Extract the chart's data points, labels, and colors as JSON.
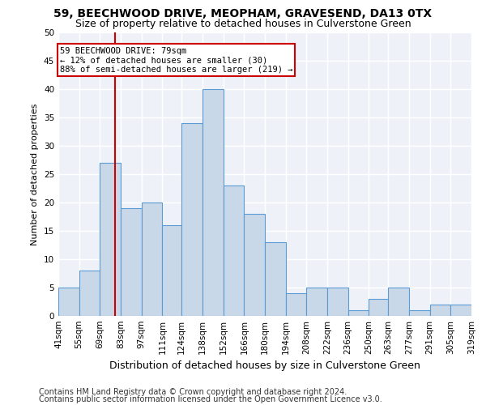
{
  "title1": "59, BEECHWOOD DRIVE, MEOPHAM, GRAVESEND, DA13 0TX",
  "title2": "Size of property relative to detached houses in Culverstone Green",
  "xlabel": "Distribution of detached houses by size in Culverstone Green",
  "ylabel": "Number of detached properties",
  "footer1": "Contains HM Land Registry data © Crown copyright and database right 2024.",
  "footer2": "Contains public sector information licensed under the Open Government Licence v3.0.",
  "bins": [
    41,
    55,
    69,
    83,
    97,
    111,
    124,
    138,
    152,
    166,
    180,
    194,
    208,
    222,
    236,
    250,
    263,
    277,
    291,
    305,
    319
  ],
  "bin_labels": [
    "41sqm",
    "55sqm",
    "69sqm",
    "83sqm",
    "97sqm",
    "111sqm",
    "124sqm",
    "138sqm",
    "152sqm",
    "166sqm",
    "180sqm",
    "194sqm",
    "208sqm",
    "222sqm",
    "236sqm",
    "250sqm",
    "263sqm",
    "277sqm",
    "291sqm",
    "305sqm",
    "319sqm"
  ],
  "values": [
    5,
    8,
    27,
    19,
    20,
    16,
    34,
    40,
    23,
    18,
    13,
    4,
    5,
    5,
    1,
    3,
    5,
    1,
    2,
    2
  ],
  "bar_color": "#c8d8e8",
  "bar_edge_color": "#5b9bd5",
  "vline_x": 79,
  "vline_color": "#cc0000",
  "annotation_line1": "59 BEECHWOOD DRIVE: 79sqm",
  "annotation_line2": "← 12% of detached houses are smaller (30)",
  "annotation_line3": "88% of semi-detached houses are larger (219) →",
  "annotation_box_color": "#cc0000",
  "ylim": [
    0,
    50
  ],
  "yticks": [
    0,
    5,
    10,
    15,
    20,
    25,
    30,
    35,
    40,
    45,
    50
  ],
  "background_color": "#eef2f8",
  "grid_color": "#ffffff",
  "title1_fontsize": 10,
  "title2_fontsize": 9,
  "ylabel_fontsize": 8,
  "xlabel_fontsize": 9,
  "tick_fontsize": 7.5,
  "annotation_fontsize": 7.5,
  "footer_fontsize": 7
}
